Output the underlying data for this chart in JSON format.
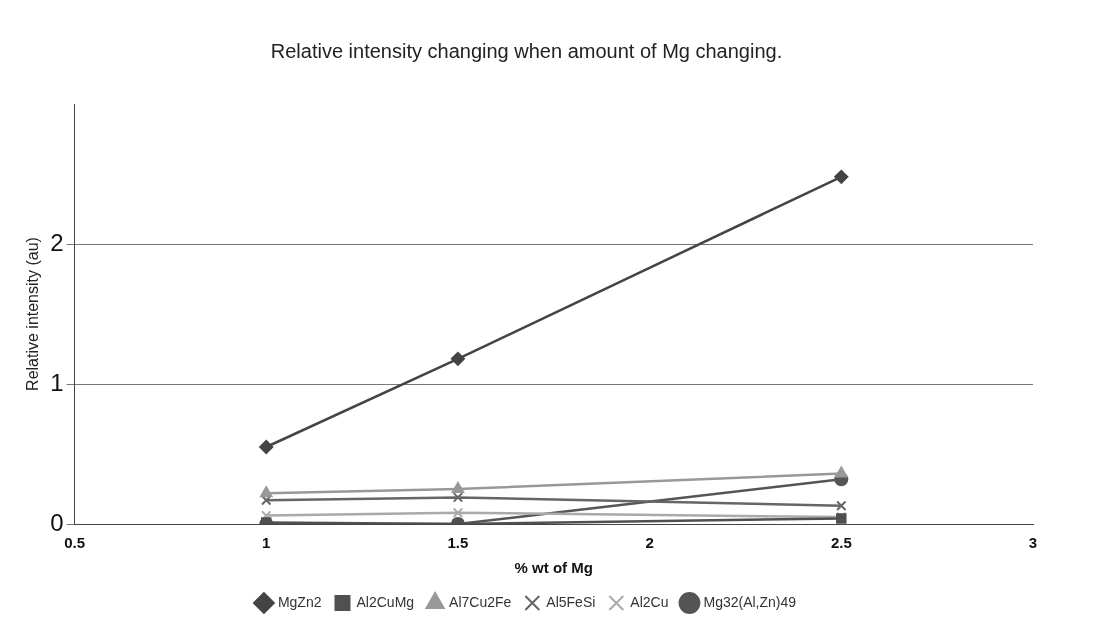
{
  "chart_data": {
    "type": "line",
    "title": "Relative intensity changing when amount of Mg changing.",
    "xlabel": "% wt of Mg",
    "ylabel": "Relative intensity (au)",
    "x": [
      1,
      1.5,
      2.5
    ],
    "xlim": [
      0.5,
      3
    ],
    "xticks": [
      0.5,
      1,
      1.5,
      2,
      2.5,
      3
    ],
    "ylim": [
      0,
      3
    ],
    "yticks": [
      0,
      1,
      2
    ],
    "grid": "y",
    "legend": "bottom",
    "series": [
      {
        "name": "MgZn2",
        "color": "#444444",
        "marker": "diamond",
        "values": [
          0.55,
          1.18,
          2.48
        ]
      },
      {
        "name": "Al2CuMg",
        "color": "#505050",
        "marker": "square",
        "values": [
          0.01,
          0.0,
          0.04
        ]
      },
      {
        "name": "Al7Cu2Fe",
        "color": "#999999",
        "marker": "triangle",
        "values": [
          0.22,
          0.25,
          0.36
        ]
      },
      {
        "name": "Al5FeSi",
        "color": "#666666",
        "marker": "cross",
        "values": [
          0.17,
          0.19,
          0.13
        ]
      },
      {
        "name": "Al2Cu",
        "color": "#aaaaaa",
        "marker": "cross",
        "values": [
          0.06,
          0.08,
          0.05
        ]
      },
      {
        "name": "Mg32(Al,Zn)49",
        "color": "#555555",
        "marker": "circle",
        "values": [
          0.0,
          0.0,
          0.32
        ]
      }
    ]
  }
}
